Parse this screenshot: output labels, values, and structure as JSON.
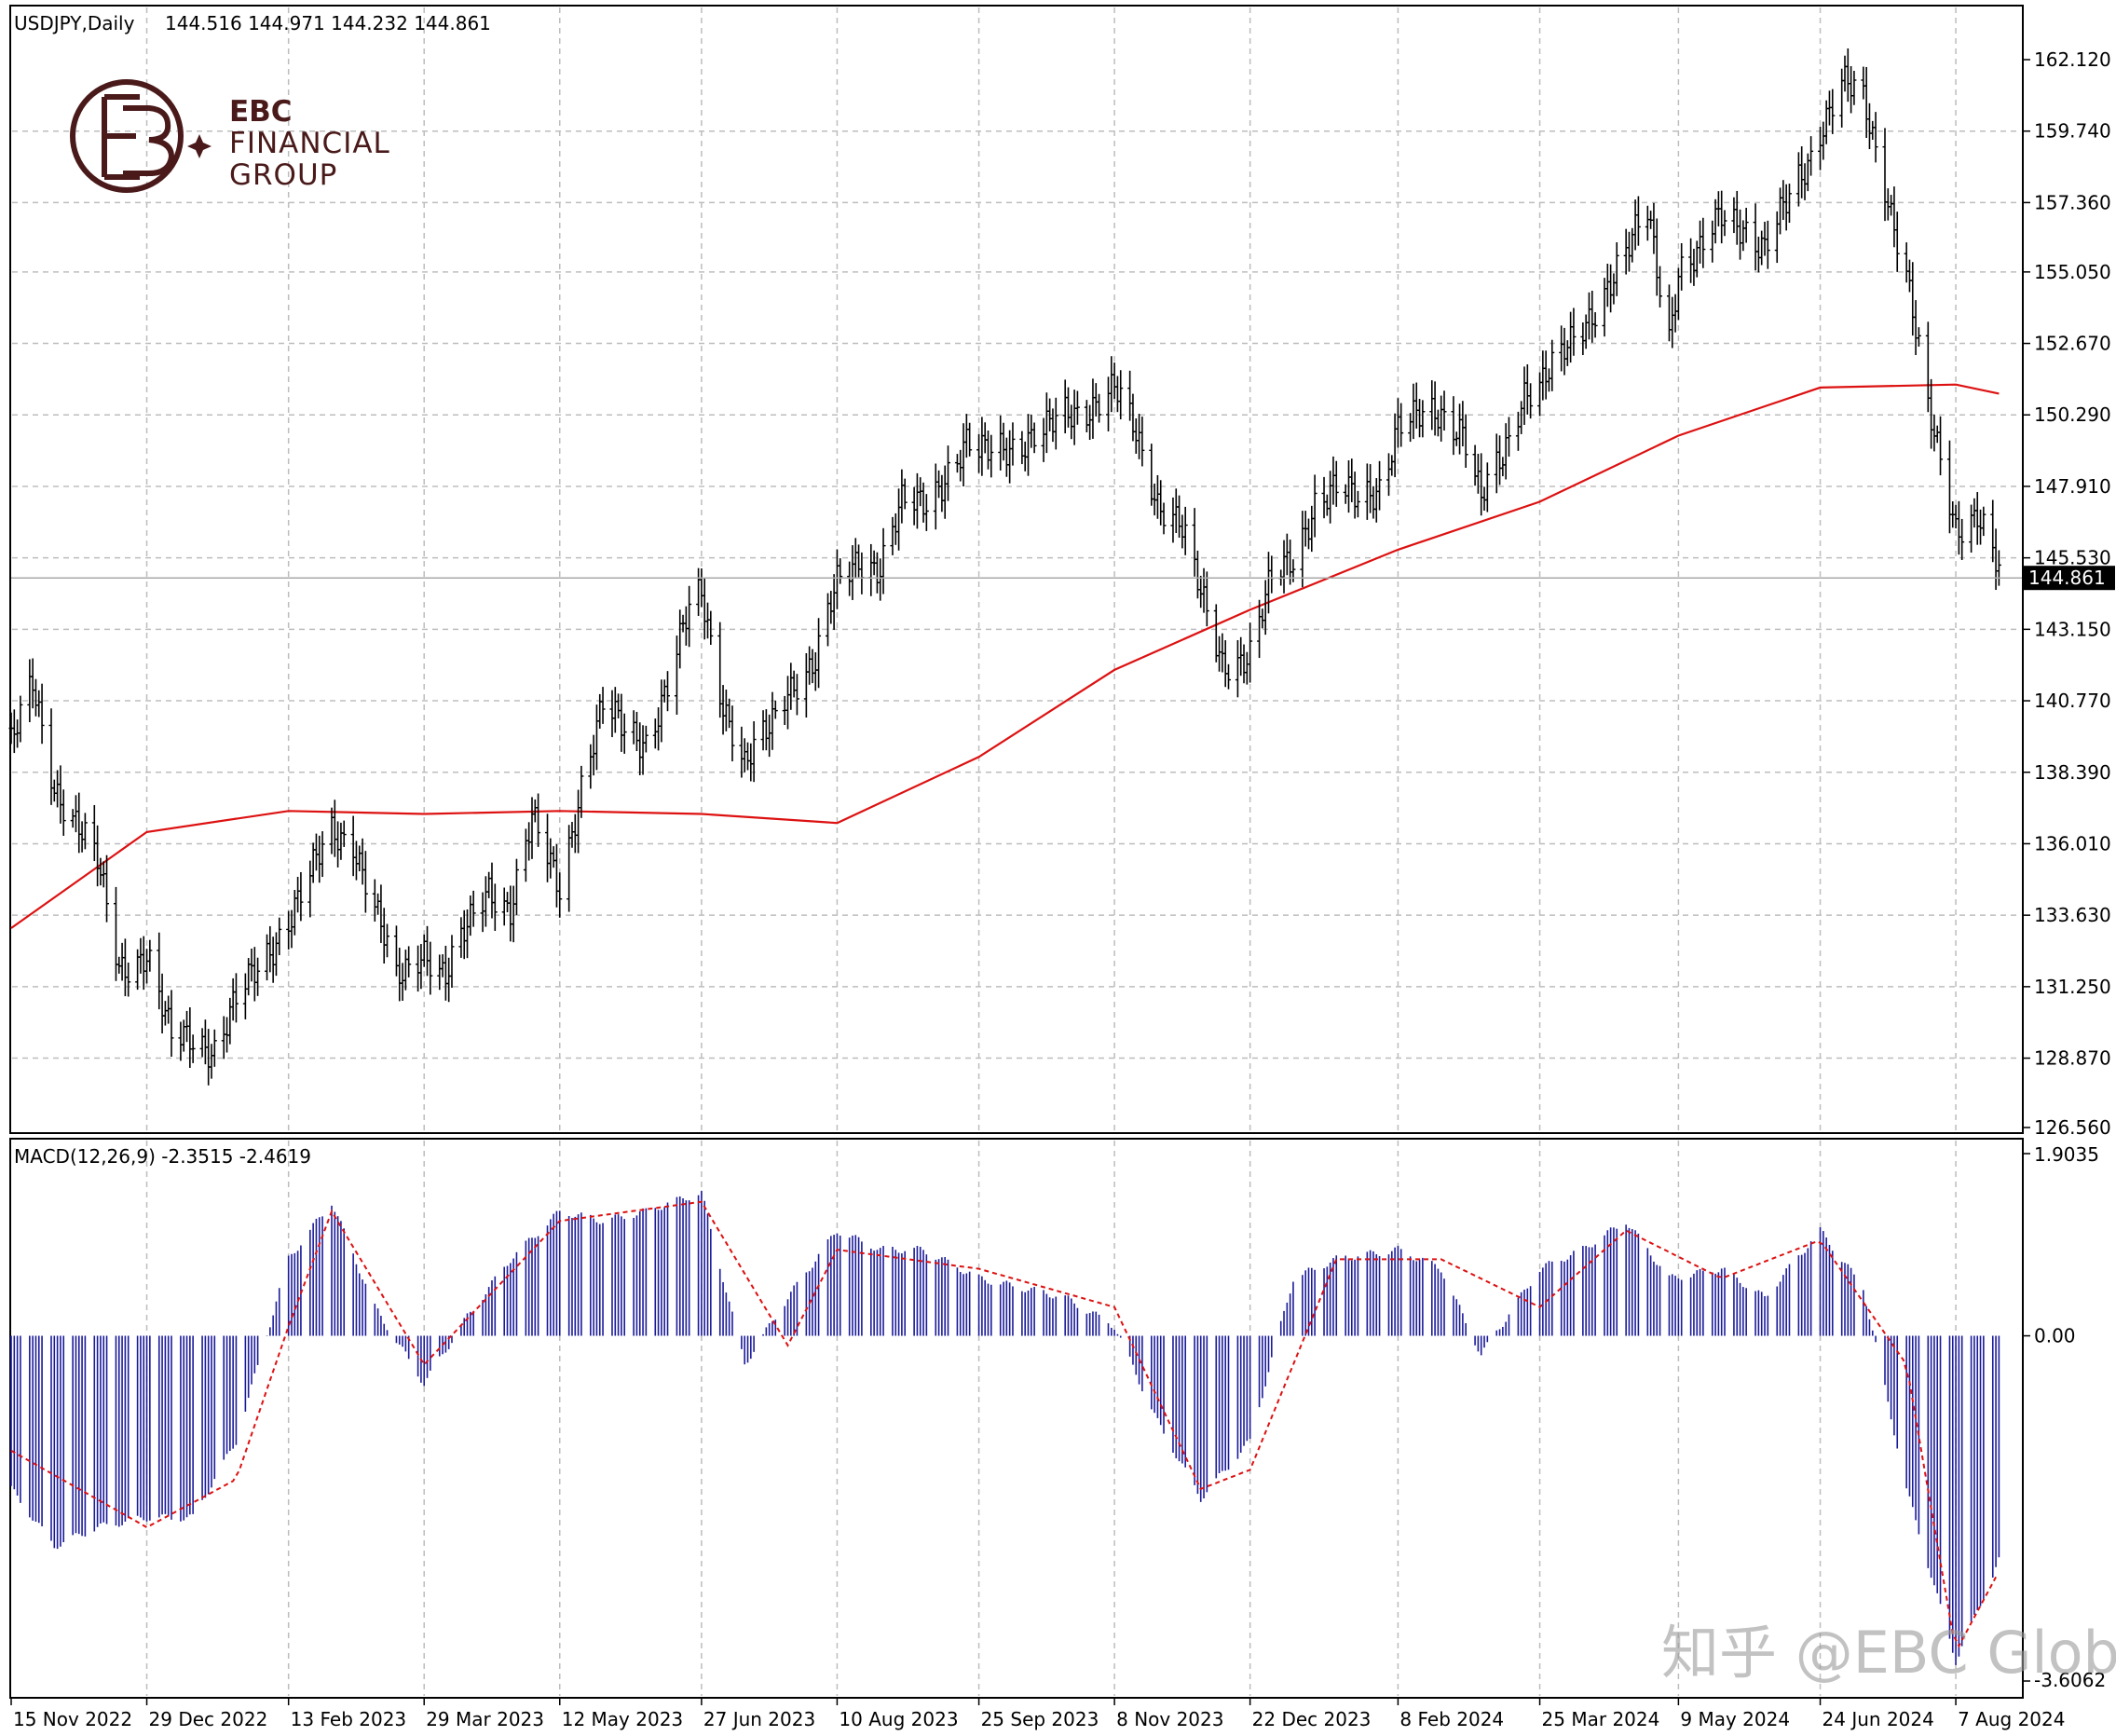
{
  "header": {
    "symbol": "USDJPY,Daily",
    "ohlc": "144.516 144.971 144.232 144.861"
  },
  "logo": {
    "line1": "EBC",
    "line2": "FINANCIAL",
    "line3": "GROUP"
  },
  "watermark": "知乎 @EBC Global",
  "colors": {
    "bars": "#000000",
    "ma": "#dd1111",
    "macd_hist": "#1a1a9a",
    "signal": "#dd1111",
    "grid": "#bdbdbd",
    "price_tag_bg": "#000000",
    "price_tag_text": "#ffffff"
  },
  "chart_data": [
    {
      "type": "ohlc",
      "panel": "price",
      "ylim": [
        126.56,
        162.12
      ],
      "y_ticks": [
        "162.120",
        "159.740",
        "157.360",
        "155.050",
        "152.670",
        "150.290",
        "147.910",
        "145.530",
        "143.150",
        "140.770",
        "138.390",
        "136.010",
        "133.630",
        "131.250",
        "128.870",
        "126.560"
      ],
      "current_price": "144.861",
      "x_ticks": [
        "15 Nov 2022",
        "29 Dec 2022",
        "13 Feb 2023",
        "29 Mar 2023",
        "12 May 2023",
        "27 Jun 2023",
        "10 Aug 2023",
        "25 Sep 2023",
        "8 Nov 2023",
        "22 Dec 2023",
        "8 Feb 2024",
        "25 Mar 2024",
        "9 May 2024",
        "24 Jun 2024",
        "7 Aug 2024"
      ],
      "close_path": [
        [
          "15 Nov 2022",
          139.3
        ],
        [
          "22 Nov 2022",
          141.2
        ],
        [
          "29 Nov 2022",
          138.0
        ],
        [
          "6 Dec 2022",
          136.8
        ],
        [
          "13 Dec 2022",
          135.3
        ],
        [
          "20 Dec 2022",
          131.9
        ],
        [
          "29 Dec 2022",
          132.4
        ],
        [
          "6 Jan 2023",
          129.4
        ],
        [
          "13 Jan 2023",
          129.6
        ],
        [
          "20 Jan 2023",
          129.2
        ],
        [
          "27 Jan 2023",
          130.7
        ],
        [
          "6 Feb 2023",
          132.3
        ],
        [
          "13 Feb 2023",
          133.6
        ],
        [
          "20 Feb 2023",
          134.9
        ],
        [
          "27 Feb 2023",
          136.3
        ],
        [
          "6 Mar 2023",
          136.2
        ],
        [
          "13 Mar 2023",
          133.9
        ],
        [
          "20 Mar 2023",
          131.3
        ],
        [
          "29 Mar 2023",
          132.6
        ],
        [
          "5 Apr 2023",
          131.6
        ],
        [
          "12 Apr 2023",
          133.1
        ],
        [
          "19 Apr 2023",
          134.6
        ],
        [
          "26 Apr 2023",
          133.9
        ],
        [
          "3 May 2023",
          136.7
        ],
        [
          "12 May 2023",
          134.6
        ],
        [
          "19 May 2023",
          138.0
        ],
        [
          "26 May 2023",
          140.5
        ],
        [
          "2 Jun 2023",
          139.8
        ],
        [
          "9 Jun 2023",
          139.5
        ],
        [
          "16 Jun 2023",
          141.2
        ],
        [
          "23 Jun 2023",
          143.7
        ],
        [
          "27 Jun 2023",
          144.4
        ],
        [
          "4 Jul 2023",
          140.8
        ],
        [
          "11 Jul 2023",
          138.5
        ],
        [
          "18 Jul 2023",
          139.6
        ],
        [
          "25 Jul 2023",
          141.3
        ],
        [
          "3 Aug 2023",
          142.0
        ],
        [
          "10 Aug 2023",
          144.6
        ],
        [
          "17 Aug 2023",
          145.6
        ],
        [
          "24 Aug 2023",
          145.2
        ],
        [
          "31 Aug 2023",
          147.2
        ],
        [
          "7 Sep 2023",
          147.4
        ],
        [
          "14 Sep 2023",
          148.3
        ],
        [
          "21 Sep 2023",
          149.2
        ],
        [
          "25 Sep 2023",
          148.9
        ],
        [
          "2 Oct 2023",
          149.3
        ],
        [
          "9 Oct 2023",
          149.4
        ],
        [
          "16 Oct 2023",
          149.6
        ],
        [
          "23 Oct 2023",
          150.3
        ],
        [
          "30 Oct 2023",
          150.6
        ],
        [
          "8 Nov 2023",
          151.1
        ],
        [
          "15 Nov 2023",
          149.6
        ],
        [
          "22 Nov 2023",
          147.5
        ],
        [
          "29 Nov 2023",
          146.8
        ],
        [
          "6 Dec 2023",
          144.2
        ],
        [
          "13 Dec 2023",
          142.1
        ],
        [
          "22 Dec 2023",
          142.3
        ],
        [
          "29 Dec 2023",
          144.7
        ],
        [
          "5 Jan 2024",
          145.6
        ],
        [
          "12 Jan 2024",
          147.4
        ],
        [
          "19 Jan 2024",
          147.7
        ],
        [
          "26 Jan 2024",
          147.5
        ],
        [
          "2 Feb 2024",
          148.0
        ],
        [
          "8 Feb 2024",
          149.9
        ],
        [
          "15 Feb 2024",
          150.1
        ],
        [
          "22 Feb 2024",
          150.4
        ],
        [
          "29 Feb 2024",
          149.9
        ],
        [
          "6 Mar 2024",
          147.4
        ],
        [
          "13 Mar 2024",
          148.8
        ],
        [
          "20 Mar 2024",
          151.2
        ],
        [
          "25 Mar 2024",
          151.4
        ],
        [
          "1 Apr 2024",
          152.1
        ],
        [
          "8 Apr 2024",
          153.2
        ],
        [
          "15 Apr 2024",
          154.5
        ],
        [
          "22 Apr 2024",
          155.6
        ],
        [
          "29 Apr 2024",
          157.0
        ],
        [
          "6 May 2024",
          153.0
        ],
        [
          "9 May 2024",
          155.2
        ],
        [
          "16 May 2024",
          155.6
        ],
        [
          "23 May 2024",
          156.9
        ],
        [
          "30 May 2024",
          156.7
        ],
        [
          "6 Jun 2024",
          155.8
        ],
        [
          "13 Jun 2024",
          157.2
        ],
        [
          "20 Jun 2024",
          158.7
        ],
        [
          "24 Jun 2024",
          159.9
        ],
        [
          "1 Jul 2024",
          161.4
        ],
        [
          "8 Jul 2024",
          160.6
        ],
        [
          "15 Jul 2024",
          158.0
        ],
        [
          "22 Jul 2024",
          155.1
        ],
        [
          "29 Jul 2024",
          150.3
        ],
        [
          "7 Aug 2024",
          146.6
        ],
        [
          "14 Aug 2024",
          147.1
        ],
        [
          "21 Aug 2024",
          145.0
        ]
      ],
      "moving_average": [
        [
          "15 Nov 2022",
          133.2
        ],
        [
          "29 Dec 2022",
          136.4
        ],
        [
          "13 Feb 2023",
          137.1
        ],
        [
          "29 Mar 2023",
          137.0
        ],
        [
          "12 May 2023",
          137.1
        ],
        [
          "27 Jun 2023",
          137.0
        ],
        [
          "10 Aug 2023",
          136.7
        ],
        [
          "25 Sep 2023",
          138.9
        ],
        [
          "8 Nov 2023",
          141.8
        ],
        [
          "22 Dec 2023",
          143.8
        ],
        [
          "8 Feb 2024",
          145.8
        ],
        [
          "25 Mar 2024",
          147.4
        ],
        [
          "9 May 2024",
          149.6
        ],
        [
          "24 Jun 2024",
          151.2
        ],
        [
          "7 Aug 2024",
          151.3
        ],
        [
          "21 Aug 2024",
          151.0
        ]
      ]
    },
    {
      "type": "bar",
      "panel": "indicator",
      "title": "MACD(12,26,9) -2.3515 -2.4619",
      "ylim": [
        -3.6062,
        1.9035
      ],
      "y_ticks": [
        "1.9035",
        "0.00",
        "-3.6062"
      ],
      "macd_histogram": [
        [
          "15 Nov 2022",
          -1.6
        ],
        [
          "29 Nov 2022",
          -2.2
        ],
        [
          "13 Dec 2022",
          -2.0
        ],
        [
          "29 Dec 2022",
          -1.9
        ],
        [
          "13 Jan 2023",
          -1.9
        ],
        [
          "27 Jan 2023",
          -1.1
        ],
        [
          "13 Feb 2023",
          0.8
        ],
        [
          "27 Feb 2023",
          1.4
        ],
        [
          "13 Mar 2023",
          0.3
        ],
        [
          "29 Mar 2023",
          -0.5
        ],
        [
          "12 Apr 2023",
          0.2
        ],
        [
          "26 Apr 2023",
          0.8
        ],
        [
          "12 May 2023",
          1.3
        ],
        [
          "26 May 2023",
          1.2
        ],
        [
          "9 Jun 2023",
          1.3
        ],
        [
          "27 Jun 2023",
          1.5
        ],
        [
          "11 Jul 2023",
          -0.3
        ],
        [
          "25 Jul 2023",
          0.4
        ],
        [
          "10 Aug 2023",
          1.1
        ],
        [
          "24 Aug 2023",
          0.9
        ],
        [
          "7 Sep 2023",
          0.9
        ],
        [
          "25 Sep 2023",
          0.6
        ],
        [
          "9 Oct 2023",
          0.5
        ],
        [
          "23 Oct 2023",
          0.4
        ],
        [
          "8 Nov 2023",
          0.1
        ],
        [
          "22 Nov 2023",
          -0.9
        ],
        [
          "6 Dec 2023",
          -1.7
        ],
        [
          "22 Dec 2023",
          -1.1
        ],
        [
          "5 Jan 2024",
          0.6
        ],
        [
          "19 Jan 2024",
          0.8
        ],
        [
          "8 Feb 2024",
          0.9
        ],
        [
          "22 Feb 2024",
          0.7
        ],
        [
          "6 Mar 2024",
          -0.2
        ],
        [
          "25 Mar 2024",
          0.7
        ],
        [
          "8 Apr 2024",
          0.9
        ],
        [
          "22 Apr 2024",
          1.2
        ],
        [
          "6 May 2024",
          0.6
        ],
        [
          "23 May 2024",
          0.7
        ],
        [
          "6 Jun 2024",
          0.4
        ],
        [
          "24 Jun 2024",
          1.1
        ],
        [
          "8 Jul 2024",
          0.5
        ],
        [
          "22 Jul 2024",
          -1.6
        ],
        [
          "7 Aug 2024",
          -3.4
        ],
        [
          "21 Aug 2024",
          -2.35
        ]
      ],
      "signal_line": [
        [
          "15 Nov 2022",
          -1.2
        ],
        [
          "29 Dec 2022",
          -2.0
        ],
        [
          "27 Jan 2023",
          -1.5
        ],
        [
          "13 Feb 2023",
          0.1
        ],
        [
          "27 Feb 2023",
          1.3
        ],
        [
          "29 Mar 2023",
          -0.3
        ],
        [
          "12 May 2023",
          1.2
        ],
        [
          "27 Jun 2023",
          1.4
        ],
        [
          "25 Jul 2023",
          -0.1
        ],
        [
          "10 Aug 2023",
          0.9
        ],
        [
          "25 Sep 2023",
          0.7
        ],
        [
          "8 Nov 2023",
          0.3
        ],
        [
          "6 Dec 2023",
          -1.6
        ],
        [
          "22 Dec 2023",
          -1.4
        ],
        [
          "19 Jan 2024",
          0.8
        ],
        [
          "22 Feb 2024",
          0.8
        ],
        [
          "25 Mar 2024",
          0.3
        ],
        [
          "22 Apr 2024",
          1.1
        ],
        [
          "23 May 2024",
          0.6
        ],
        [
          "24 Jun 2024",
          1.0
        ],
        [
          "22 Jul 2024",
          -0.3
        ],
        [
          "7 Aug 2024",
          -3.3
        ],
        [
          "21 Aug 2024",
          -2.46
        ]
      ]
    }
  ]
}
